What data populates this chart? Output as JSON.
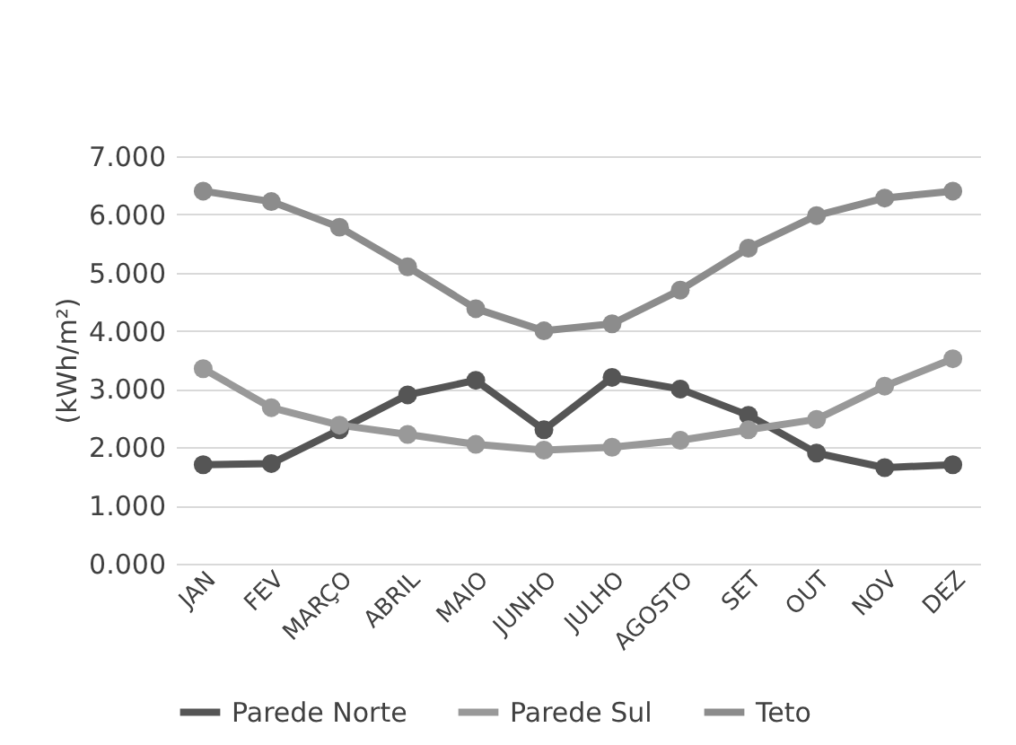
{
  "chart_data": {
    "type": "line",
    "ylabel": "(kWh/m²)",
    "categories": [
      "JAN",
      "FEV",
      "MARÇO",
      "ABRIL",
      "MAIO",
      "JUNHO",
      "JULHO",
      "AGOSTO",
      "SET",
      "OUT",
      "NOV",
      "DEZ"
    ],
    "series": [
      {
        "name": "Parede Norte",
        "color": "#555555",
        "values": [
          1.7,
          1.72,
          2.3,
          2.9,
          3.15,
          2.3,
          3.2,
          3.0,
          2.55,
          1.9,
          1.65,
          1.7
        ]
      },
      {
        "name": "Parede Sul",
        "color": "#999999",
        "values": [
          3.35,
          2.68,
          2.38,
          2.22,
          2.05,
          1.95,
          2.0,
          2.12,
          2.3,
          2.48,
          3.05,
          3.52
        ]
      },
      {
        "name": "Teto",
        "color": "#8c8c8c",
        "values": [
          6.4,
          6.22,
          5.78,
          5.1,
          4.38,
          4.0,
          4.12,
          4.7,
          5.42,
          5.98,
          6.28,
          6.4
        ]
      }
    ],
    "ylim": [
      0,
      7
    ],
    "yticks": [
      {
        "value": 0,
        "label": "0.000"
      },
      {
        "value": 1,
        "label": "1.000"
      },
      {
        "value": 2,
        "label": "2.000"
      },
      {
        "value": 3,
        "label": "3.000"
      },
      {
        "value": 4,
        "label": "4.000"
      },
      {
        "value": 5,
        "label": "5.000"
      },
      {
        "value": 6,
        "label": "6.000"
      },
      {
        "value": 7,
        "label": "7.000"
      }
    ],
    "grid": "y",
    "legend": "bottom",
    "marker": "circle",
    "line_style": "solid"
  }
}
